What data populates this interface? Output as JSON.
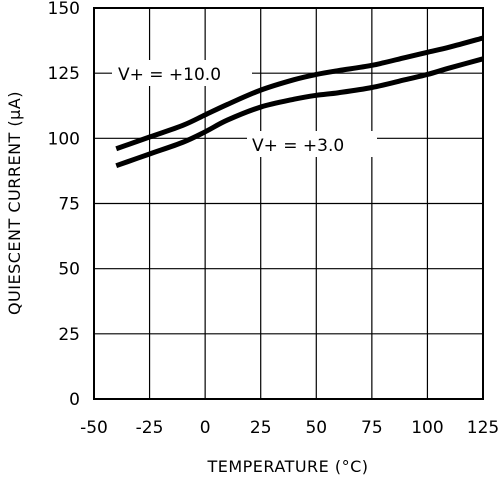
{
  "chart_data": {
    "type": "line",
    "title": "",
    "xlabel": "TEMPERATURE (°C)",
    "ylabel": "QUIESCENT CURRENT (µA)",
    "xlim": [
      -50,
      125
    ],
    "ylim": [
      0,
      150
    ],
    "xticks": [
      -50,
      -25,
      0,
      25,
      50,
      75,
      100,
      125
    ],
    "yticks": [
      0,
      25,
      50,
      75,
      100,
      125,
      150
    ],
    "grid": true,
    "series": [
      {
        "name": "V+ = +10.0",
        "x": [
          -40,
          -25,
          -10,
          0,
          10,
          25,
          40,
          50,
          60,
          75,
          90,
          100,
          110,
          125
        ],
        "y": [
          96,
          100.5,
          105,
          109,
          113,
          118.5,
          122.5,
          124.5,
          126,
          128,
          131,
          133,
          135,
          138.5
        ]
      },
      {
        "name": "V+ = +3.0",
        "x": [
          -40,
          -25,
          -10,
          0,
          10,
          25,
          40,
          50,
          60,
          75,
          90,
          100,
          110,
          125
        ],
        "y": [
          89.5,
          94,
          98.5,
          102.5,
          107,
          112,
          115,
          116.5,
          117.5,
          119.5,
          122.5,
          124.5,
          127,
          130.5
        ]
      }
    ],
    "annotations": [
      {
        "text": "V+ = +10.0"
      },
      {
        "text": "V+ = +3.0"
      }
    ]
  }
}
